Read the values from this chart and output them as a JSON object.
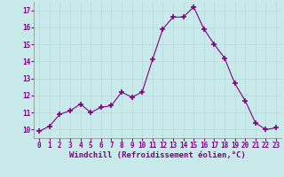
{
  "x": [
    0,
    1,
    2,
    3,
    4,
    5,
    6,
    7,
    8,
    9,
    10,
    11,
    12,
    13,
    14,
    15,
    16,
    17,
    18,
    19,
    20,
    21,
    22,
    23
  ],
  "y": [
    9.9,
    10.2,
    10.9,
    11.1,
    11.5,
    11.0,
    11.3,
    11.4,
    12.2,
    11.9,
    12.2,
    14.1,
    15.9,
    16.6,
    16.6,
    17.2,
    15.9,
    15.0,
    14.2,
    12.7,
    11.7,
    10.4,
    10.0,
    10.1
  ],
  "line_color": "#800080",
  "marker": "+",
  "markersize": 4,
  "linewidth": 0.8,
  "xlabel": "Windchill (Refroidissement éolien,°C)",
  "xlabel_fontsize": 6.5,
  "ylim": [
    9.5,
    17.5
  ],
  "xlim": [
    -0.5,
    23.5
  ],
  "yticks": [
    10,
    11,
    12,
    13,
    14,
    15,
    16,
    17
  ],
  "xticks": [
    0,
    1,
    2,
    3,
    4,
    5,
    6,
    7,
    8,
    9,
    10,
    11,
    12,
    13,
    14,
    15,
    16,
    17,
    18,
    19,
    20,
    21,
    22,
    23
  ],
  "grid_color": "#b8d8d8",
  "bg_color": "#c8eaea",
  "tick_color": "#800080",
  "tick_fontsize": 5.5,
  "spine_color": "#888888"
}
